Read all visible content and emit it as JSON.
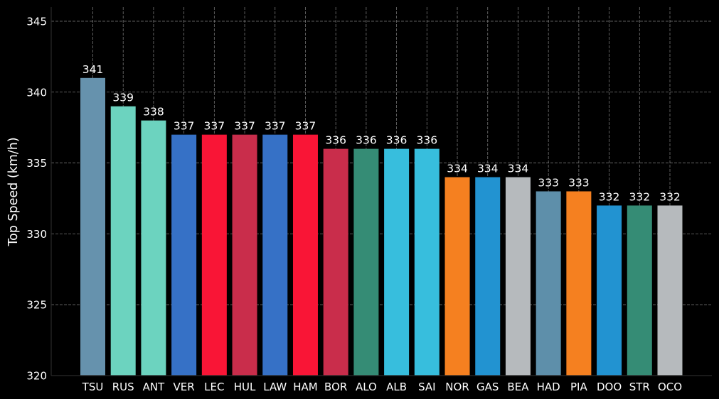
{
  "chart_data": {
    "type": "bar",
    "title": "",
    "xlabel": "",
    "ylabel": "Top Speed (km/h)",
    "ylim": [
      320,
      346
    ],
    "yticks": [
      320,
      325,
      330,
      335,
      340,
      345
    ],
    "grid": true,
    "categories": [
      "TSU",
      "RUS",
      "ANT",
      "VER",
      "LEC",
      "HUL",
      "LAW",
      "HAM",
      "BOR",
      "ALO",
      "ALB",
      "SAI",
      "NOR",
      "GAS",
      "BEA",
      "HAD",
      "PIA",
      "DOO",
      "STR",
      "OCO"
    ],
    "values": [
      341,
      339,
      338,
      337,
      337,
      337,
      337,
      337,
      336,
      336,
      336,
      336,
      334,
      334,
      334,
      333,
      333,
      332,
      332,
      332
    ],
    "value_labels": [
      "341",
      "339",
      "338",
      "337",
      "337",
      "337",
      "337",
      "337",
      "336",
      "336",
      "336",
      "336",
      "334",
      "334",
      "334",
      "333",
      "333",
      "332",
      "332",
      "332"
    ],
    "colors": [
      "#6692AD",
      "#6CD3BF",
      "#6CD3BF",
      "#3671C6",
      "#F91536",
      "#C92D4B",
      "#3671C6",
      "#F91536",
      "#C92D4B",
      "#358C75",
      "#37BEDD",
      "#37BEDD",
      "#F58020",
      "#2293D1",
      "#B6BABD",
      "#5E8FAA",
      "#F58020",
      "#2293D1",
      "#358C75",
      "#B6BABD"
    ],
    "background": "#000000"
  }
}
